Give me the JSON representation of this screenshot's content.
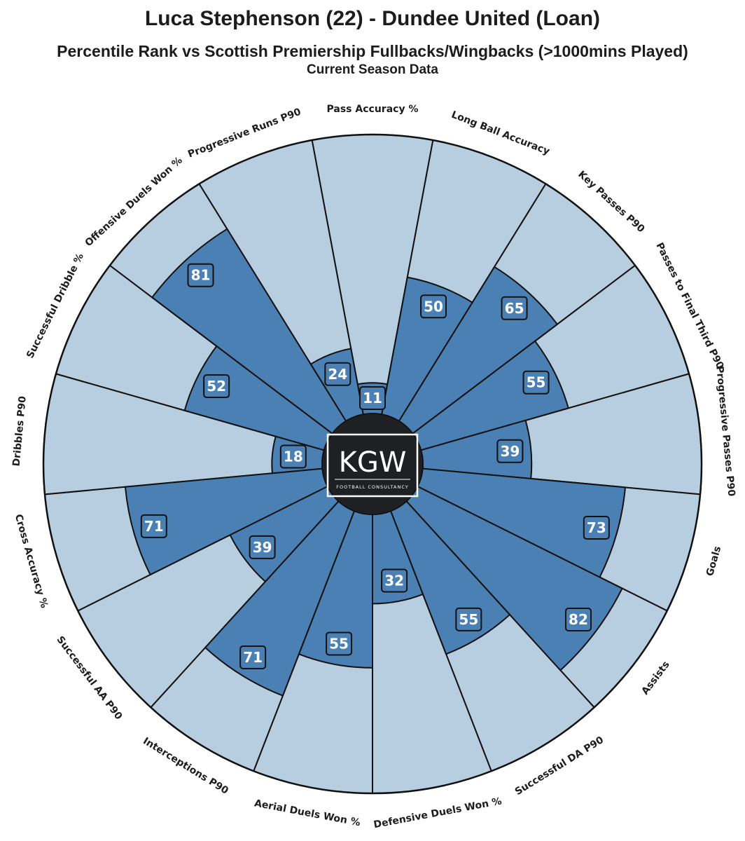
{
  "header": {
    "title": "Luca Stephenson (22) - Dundee United (Loan)",
    "subtitle": "Percentile Rank vs Scottish Premiership Fullbacks/Wingbacks (>1000mins Played)",
    "subtitle2": "Current Season Data"
  },
  "logo": {
    "main_text": "KGW",
    "sub_text": "FOOTBALL CONSULTANCY"
  },
  "colors": {
    "background_slice": "#b7cde0",
    "value_slice": "#4a80b4",
    "label_box": "#4a80b4",
    "stroke": "#111111",
    "center": "#1e2024"
  },
  "chart_data": {
    "type": "radial-bar",
    "scale": [
      0,
      100
    ],
    "categories": [
      "Pass Accuracy %",
      "Long Ball Accuracy",
      "Key Passes P90",
      "Passes to Final Third P90",
      "Progressive Passes P90",
      "Goals",
      "Assists",
      "Successful DA P90",
      "Defensive Duels Won %",
      "Aerial Duels Won %",
      "Interceptions P90",
      "Successful AA P90",
      "Cross Accuracy %",
      "Dribbles P90",
      "Successful Dribble %",
      "Offensive Duels Won %",
      "Progressive Runs P90"
    ],
    "values": [
      11,
      50,
      65,
      55,
      39,
      73,
      82,
      55,
      32,
      55,
      71,
      39,
      71,
      18,
      52,
      81,
      24
    ]
  }
}
